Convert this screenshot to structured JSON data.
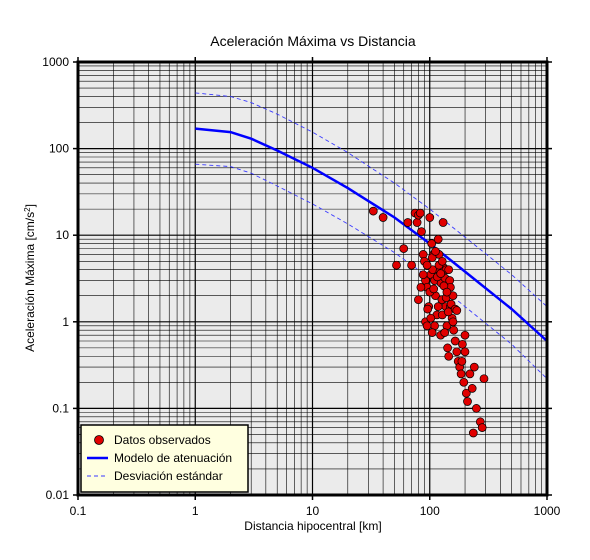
{
  "chart_data": {
    "type": "scatter",
    "title": "Aceleración Máxima vs Distancia",
    "xlabel": "Distancia hipocentral [km]",
    "ylabel_main": "Aceleración Máxima [cm/s",
    "ylabel_sup": "2",
    "ylabel_tail": "]",
    "xscale": "log",
    "yscale": "log",
    "xlim": [
      0.1,
      1000
    ],
    "ylim": [
      0.01,
      1000
    ],
    "grid": true,
    "legend_position": "bottom-left",
    "x_ticks": [
      "0.1",
      "1",
      "10",
      "100",
      "1000"
    ],
    "y_ticks": [
      "0.01",
      "0.1",
      "1",
      "10",
      "100",
      "1000"
    ],
    "colors": {
      "plot_background": "#ebebeb",
      "grid": "#000000",
      "points": "#e00000",
      "model": "#0000ff",
      "deviation": "#3a3aff",
      "legend_background": "#ffffe0"
    },
    "series": [
      {
        "name": "Datos observados",
        "kind": "scatter",
        "points": [
          [
            33,
            19
          ],
          [
            40,
            16
          ],
          [
            52,
            4.5
          ],
          [
            60,
            7
          ],
          [
            65,
            14
          ],
          [
            70,
            4.5
          ],
          [
            75,
            18
          ],
          [
            78,
            14
          ],
          [
            80,
            17
          ],
          [
            83,
            18
          ],
          [
            85,
            11
          ],
          [
            88,
            6
          ],
          [
            90,
            5
          ],
          [
            92,
            3
          ],
          [
            95,
            2.5
          ],
          [
            98,
            1.5
          ],
          [
            100,
            16
          ],
          [
            102,
            3.5
          ],
          [
            104,
            8
          ],
          [
            106,
            4
          ],
          [
            108,
            6
          ],
          [
            110,
            3
          ],
          [
            112,
            2
          ],
          [
            115,
            1.2
          ],
          [
            118,
            9
          ],
          [
            120,
            6
          ],
          [
            122,
            3.8
          ],
          [
            125,
            2.8
          ],
          [
            127,
            1.8
          ],
          [
            130,
            14
          ],
          [
            132,
            4.2
          ],
          [
            135,
            3.2
          ],
          [
            137,
            1.5
          ],
          [
            140,
            0.9
          ],
          [
            142,
            0.5
          ],
          [
            145,
            0.4
          ],
          [
            148,
            3
          ],
          [
            150,
            1.5
          ],
          [
            155,
            1.1
          ],
          [
            160,
            0.8
          ],
          [
            165,
            0.6
          ],
          [
            170,
            0.45
          ],
          [
            175,
            0.35
          ],
          [
            180,
            0.3
          ],
          [
            185,
            0.25
          ],
          [
            190,
            0.55
          ],
          [
            195,
            0.2
          ],
          [
            200,
            0.7
          ],
          [
            205,
            0.15
          ],
          [
            210,
            0.12
          ],
          [
            220,
            0.25
          ],
          [
            230,
            0.17
          ],
          [
            240,
            0.3
          ],
          [
            250,
            0.1
          ],
          [
            270,
            0.07
          ],
          [
            280,
            0.06
          ],
          [
            290,
            0.22
          ],
          [
            235,
            0.052
          ],
          [
            92,
            1
          ],
          [
            96,
            1.4
          ],
          [
            102,
            1.1
          ],
          [
            110,
            0.9
          ],
          [
            118,
            1.5
          ],
          [
            124,
            0.7
          ],
          [
            128,
            1.2
          ],
          [
            134,
            0.75
          ],
          [
            138,
            1.9
          ],
          [
            144,
            1.3
          ],
          [
            152,
            1.6
          ],
          [
            158,
            1.0
          ],
          [
            165,
            1.4
          ],
          [
            170,
            1.35
          ],
          [
            95,
            4.5
          ],
          [
            105,
            5.5
          ],
          [
            112,
            6.5
          ],
          [
            120,
            4.5
          ],
          [
            128,
            5
          ],
          [
            138,
            4
          ],
          [
            145,
            4
          ],
          [
            150,
            2.5
          ],
          [
            158,
            2
          ],
          [
            100,
            2.2
          ],
          [
            108,
            2.4
          ],
          [
            116,
            3.3
          ],
          [
            124,
            3.6
          ],
          [
            132,
            2.6
          ],
          [
            140,
            2.2
          ],
          [
            88,
            3.5
          ],
          [
            84,
            2.5
          ],
          [
            80,
            1.8
          ],
          [
            95,
            0.9
          ],
          [
            105,
            0.75
          ],
          [
            200,
            0.45
          ],
          [
            188,
            0.35
          ]
        ]
      },
      {
        "name": "Modelo de atenuación",
        "kind": "line",
        "points": [
          [
            1,
            170
          ],
          [
            2,
            155
          ],
          [
            3,
            130
          ],
          [
            5,
            95
          ],
          [
            10,
            60
          ],
          [
            20,
            35
          ],
          [
            50,
            16
          ],
          [
            100,
            8
          ],
          [
            200,
            3.8
          ],
          [
            500,
            1.4
          ],
          [
            1000,
            0.6
          ]
        ]
      },
      {
        "name": "Desviación estándar",
        "kind": "dashed",
        "points": [
          [
            1,
            440
          ],
          [
            2,
            400
          ],
          [
            3,
            340
          ],
          [
            5,
            250
          ],
          [
            10,
            155
          ],
          [
            20,
            90
          ],
          [
            50,
            40
          ],
          [
            100,
            20
          ],
          [
            200,
            9.5
          ],
          [
            500,
            3.5
          ],
          [
            1000,
            1.5
          ]
        ]
      },
      {
        "name": "",
        "kind": "dashed",
        "points": [
          [
            1,
            66
          ],
          [
            2,
            62
          ],
          [
            3,
            52
          ],
          [
            5,
            37
          ],
          [
            10,
            23
          ],
          [
            20,
            13.5
          ],
          [
            50,
            6.3
          ],
          [
            100,
            3.2
          ],
          [
            200,
            1.5
          ],
          [
            500,
            0.55
          ],
          [
            1000,
            0.22
          ]
        ]
      }
    ]
  }
}
